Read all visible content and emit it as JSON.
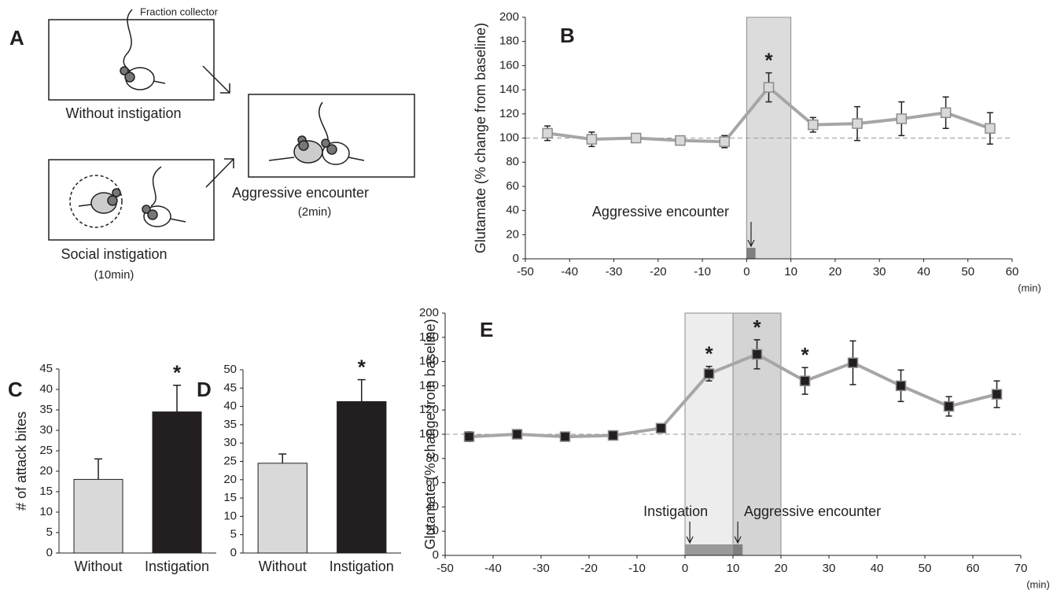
{
  "panel_a": {
    "panel_label": "A",
    "tube_label": "Fraction collector",
    "without": "Without instigation",
    "social": "Social instigation",
    "social_time": "(10min)",
    "encounter": "Aggressive encounter",
    "encounter_time": "(2min)"
  },
  "chart_data": [
    {
      "type": "line",
      "panel_label": "B",
      "ylabel": "Glutamate (% change from baseline)",
      "xlabel": "(min)",
      "x": [
        -45,
        -35,
        -25,
        -15,
        -5,
        5,
        15,
        25,
        35,
        45,
        55
      ],
      "series": [
        {
          "color": "#a6a6a6",
          "marker_fill": "#d9d9d9",
          "marker_stroke": "#8c8c8c",
          "values": [
            104,
            99,
            100,
            98,
            97,
            142,
            111,
            112,
            116,
            121,
            108
          ],
          "errors": [
            6,
            6,
            3,
            3,
            5,
            12,
            6,
            14,
            14,
            13,
            13
          ],
          "significant": [
            false,
            false,
            false,
            false,
            false,
            true,
            false,
            false,
            false,
            false,
            false
          ]
        }
      ],
      "star_label": "*",
      "xlim": [
        -50,
        60
      ],
      "xticks": [
        -50,
        -40,
        -30,
        -20,
        -10,
        0,
        10,
        20,
        30,
        40,
        50,
        60
      ],
      "ylim": [
        0,
        200
      ],
      "yticks": [
        0,
        20,
        40,
        60,
        80,
        100,
        120,
        140,
        160,
        180,
        200
      ],
      "reference_line": 100,
      "shaded": [
        {
          "xlim": [
            0,
            10
          ],
          "color": "#dcdcdc"
        }
      ],
      "event_bars": [
        {
          "xlim": [
            0,
            2
          ],
          "color": "#7f7f7f"
        }
      ],
      "annotations": [
        {
          "text": "Aggressive encounter",
          "x": 1
        }
      ]
    },
    {
      "type": "bar",
      "panel_label": "C",
      "ylabel": "# of attack bites",
      "categories": [
        "Without",
        "Instigation"
      ],
      "values": [
        18,
        34.5
      ],
      "errors": [
        5,
        6.5
      ],
      "colors": [
        "#d9d9d9",
        "#231f20"
      ],
      "significant": [
        false,
        true
      ],
      "star_label": "*",
      "ylim": [
        0,
        45
      ],
      "yticks": [
        0,
        5,
        10,
        15,
        20,
        25,
        30,
        35,
        40,
        45
      ]
    },
    {
      "type": "bar",
      "panel_label": "D",
      "categories": [
        "Without",
        "Instigation"
      ],
      "values": [
        24.5,
        41.3
      ],
      "errors": [
        2.5,
        6
      ],
      "colors": [
        "#d9d9d9",
        "#231f20"
      ],
      "significant": [
        false,
        true
      ],
      "star_label": "*",
      "ylim": [
        0,
        50
      ],
      "yticks": [
        0,
        5,
        10,
        15,
        20,
        25,
        30,
        35,
        40,
        45,
        50
      ]
    },
    {
      "type": "line",
      "panel_label": "E",
      "ylabel": "Glutamate (% change from baseline)",
      "xlabel": "(min)",
      "x": [
        -45,
        -35,
        -25,
        -15,
        -5,
        5,
        15,
        25,
        35,
        45,
        55,
        65
      ],
      "series": [
        {
          "color": "#a6a6a6",
          "marker_fill": "#231f20",
          "marker_stroke": "#8c8c8c",
          "values": [
            98,
            100,
            98,
            99,
            105,
            150,
            166,
            144,
            159,
            140,
            123,
            133
          ],
          "errors": [
            4,
            3,
            3,
            3,
            3,
            6,
            12,
            11,
            18,
            13,
            8,
            11
          ],
          "significant": [
            false,
            false,
            false,
            false,
            false,
            true,
            true,
            true,
            false,
            false,
            false,
            false
          ]
        }
      ],
      "star_label": "*",
      "xlim": [
        -50,
        70
      ],
      "xticks": [
        -50,
        -40,
        -30,
        -20,
        -10,
        0,
        10,
        20,
        30,
        40,
        50,
        60,
        70
      ],
      "ylim": [
        0,
        200
      ],
      "yticks": [
        0,
        20,
        40,
        60,
        80,
        100,
        120,
        140,
        160,
        180,
        200
      ],
      "reference_line": 100,
      "shaded": [
        {
          "xlim": [
            0,
            10
          ],
          "color": "#ededed"
        },
        {
          "xlim": [
            10,
            20
          ],
          "color": "#d4d4d4"
        }
      ],
      "event_bars": [
        {
          "xlim": [
            0,
            10
          ],
          "color": "#9a9a9a"
        },
        {
          "xlim": [
            10,
            12
          ],
          "color": "#7f7f7f"
        }
      ],
      "annotations": [
        {
          "text": "Instigation",
          "x": 1
        },
        {
          "text": "Aggressive encounter",
          "x": 11
        }
      ]
    }
  ]
}
